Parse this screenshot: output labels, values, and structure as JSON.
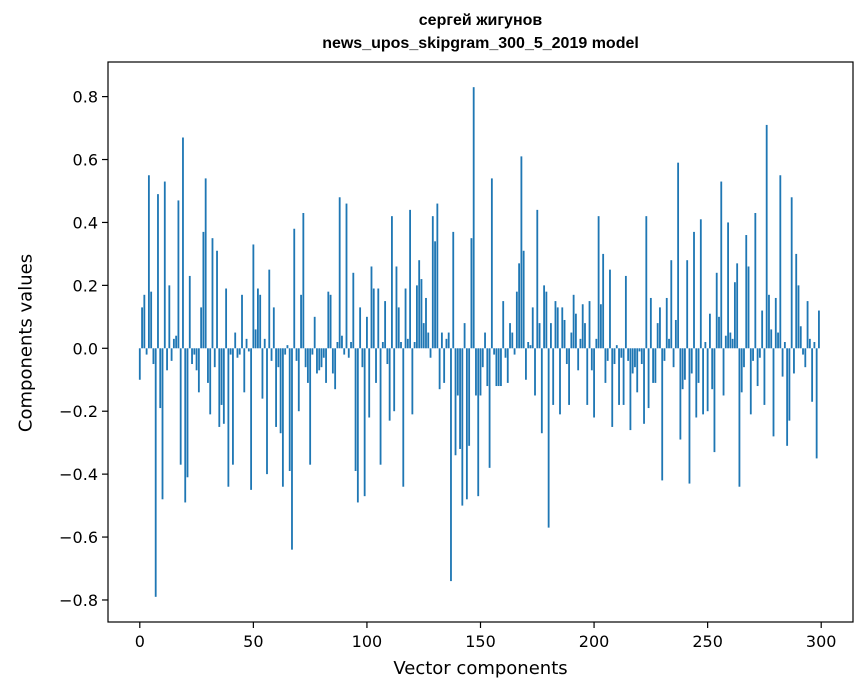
{
  "chart_data": {
    "type": "bar",
    "title": "сергей жигунов",
    "subtitle": "news_upos_skipgram_300_5_2019 model",
    "xlabel": "Vector components",
    "ylabel": "Components values",
    "xlim": [
      -14,
      314
    ],
    "ylim": [
      -0.87,
      0.91
    ],
    "xticks": [
      0,
      50,
      100,
      150,
      200,
      250,
      300
    ],
    "yticks": [
      -0.8,
      -0.6,
      -0.4,
      -0.2,
      0.0,
      0.2,
      0.4,
      0.6,
      0.8
    ],
    "ytick_labels": [
      "−0.8",
      "−0.6",
      "−0.4",
      "−0.2",
      "0.0",
      "0.2",
      "0.4",
      "0.6",
      "0.8"
    ],
    "grid": false,
    "legend": "none",
    "bar_color": "#1f77b4",
    "values": [
      -0.1,
      0.13,
      0.17,
      -0.02,
      0.55,
      0.18,
      -0.05,
      -0.79,
      0.49,
      -0.19,
      -0.48,
      0.53,
      -0.07,
      0.2,
      -0.04,
      0.03,
      0.04,
      0.47,
      -0.37,
      0.67,
      -0.49,
      -0.41,
      0.23,
      -0.05,
      -0.02,
      -0.07,
      -0.14,
      0.13,
      0.37,
      0.54,
      -0.11,
      -0.21,
      0.35,
      -0.06,
      0.31,
      -0.25,
      -0.18,
      -0.24,
      0.19,
      -0.44,
      -0.02,
      -0.37,
      0.05,
      -0.03,
      -0.02,
      0.17,
      -0.14,
      0.03,
      -0.01,
      -0.45,
      0.33,
      0.06,
      0.19,
      0.17,
      -0.16,
      0.03,
      -0.4,
      0.25,
      -0.04,
      0.13,
      -0.25,
      -0.06,
      -0.27,
      -0.44,
      -0.02,
      0.01,
      -0.39,
      -0.64,
      0.38,
      -0.04,
      -0.2,
      0.17,
      0.43,
      -0.06,
      -0.11,
      -0.37,
      -0.02,
      0.1,
      -0.08,
      -0.07,
      -0.06,
      -0.03,
      -0.11,
      0.18,
      0.17,
      -0.08,
      -0.13,
      0.02,
      0.48,
      0.04,
      -0.02,
      0.46,
      -0.03,
      0.02,
      0.24,
      -0.39,
      -0.49,
      0.13,
      -0.06,
      -0.47,
      0.1,
      -0.22,
      0.26,
      0.19,
      -0.11,
      0.19,
      -0.37,
      0.02,
      0.15,
      -0.05,
      -0.23,
      0.42,
      -0.2,
      0.26,
      0.13,
      0.02,
      -0.44,
      0.19,
      0.03,
      0.44,
      -0.21,
      0.02,
      0.2,
      0.28,
      0.22,
      0.08,
      0.16,
      0.05,
      -0.03,
      0.42,
      0.34,
      0.46,
      -0.13,
      0.05,
      -0.11,
      0.03,
      0.05,
      -0.74,
      0.37,
      -0.34,
      -0.15,
      -0.32,
      -0.5,
      0.08,
      -0.48,
      -0.31,
      0.35,
      0.83,
      -0.15,
      -0.47,
      -0.15,
      -0.06,
      0.05,
      -0.12,
      -0.38,
      0.54,
      -0.02,
      -0.12,
      -0.12,
      -0.12,
      0.15,
      -0.03,
      -0.11,
      0.08,
      0.05,
      -0.02,
      0.18,
      0.27,
      0.61,
      0.31,
      -0.1,
      0.02,
      0.01,
      0.13,
      -0.15,
      0.44,
      0.08,
      -0.27,
      0.2,
      0.18,
      -0.57,
      0.08,
      -0.18,
      0.15,
      0.13,
      -0.21,
      0.13,
      0.09,
      -0.05,
      -0.18,
      0.05,
      0.17,
      0.11,
      -0.07,
      0.03,
      0.14,
      0.08,
      -0.18,
      0.15,
      -0.07,
      -0.22,
      0.03,
      0.42,
      0.14,
      0.3,
      -0.11,
      -0.04,
      0.25,
      -0.25,
      -0.05,
      0.01,
      -0.18,
      -0.03,
      -0.18,
      0.23,
      -0.04,
      -0.26,
      -0.08,
      -0.06,
      -0.14,
      -0.01,
      -0.05,
      -0.24,
      0.42,
      -0.19,
      0.16,
      -0.11,
      -0.11,
      0.08,
      0.13,
      -0.42,
      -0.04,
      0.16,
      0.03,
      0.28,
      -0.06,
      0.09,
      0.59,
      -0.29,
      -0.13,
      -0.1,
      0.28,
      -0.43,
      -0.08,
      0.37,
      -0.22,
      -0.11,
      0.41,
      -0.21,
      0.02,
      -0.2,
      0.11,
      -0.13,
      -0.33,
      0.24,
      0.1,
      0.53,
      -0.15,
      0.04,
      0.4,
      0.05,
      0.03,
      0.21,
      0.27,
      -0.44,
      -0.14,
      -0.06,
      0.36,
      0.26,
      -0.21,
      -0.04,
      0.43,
      -0.12,
      -0.03,
      0.12,
      -0.18,
      0.71,
      0.17,
      0.06,
      -0.28,
      0.16,
      0.05,
      0.55,
      -0.09,
      0.02,
      -0.31,
      -0.23,
      0.48,
      -0.08,
      0.3,
      0.2,
      0.07,
      -0.02,
      -0.06,
      0.15,
      0.03,
      -0.17,
      0.02,
      -0.35,
      0.12
    ]
  }
}
